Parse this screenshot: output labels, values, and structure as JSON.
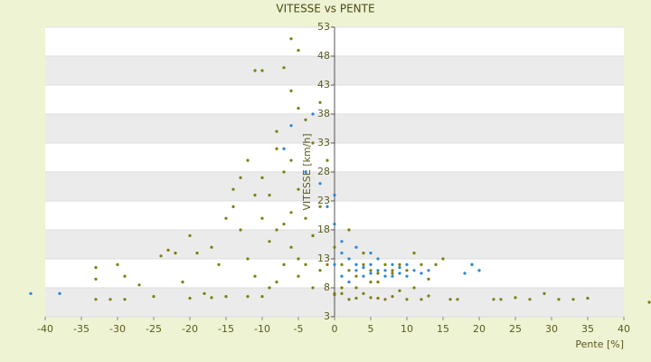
{
  "chart_data": {
    "type": "scatter",
    "title": "VITESSE vs PENTE",
    "x_label": "Pente [%]",
    "y_label": "VITESSE [km/h]",
    "xlim": [
      -40,
      40
    ],
    "xticks": [
      -40,
      -35,
      -30,
      -25,
      -20,
      -15,
      -10,
      -5,
      0,
      5,
      10,
      15,
      20,
      25,
      30,
      35,
      40
    ],
    "ylim": [
      3,
      53
    ],
    "yticks": [
      3,
      8,
      13,
      18,
      23,
      28,
      33,
      38,
      43,
      48,
      53
    ],
    "grid": true,
    "series": [
      {
        "name": "olive",
        "color": "#7d7d10",
        "x": [
          -33,
          -31,
          -29,
          -33,
          -33,
          -29,
          -30,
          -25,
          -24,
          -23,
          -22,
          -20,
          -20,
          -19,
          -17,
          -17,
          -16,
          -15,
          -15,
          -14,
          -13,
          -12,
          -12,
          -11,
          -10,
          -10,
          -9,
          -9,
          -8,
          -8,
          -7,
          -7,
          -6,
          -6,
          -6,
          -6,
          -5,
          -5,
          -5,
          -5,
          -4,
          -4,
          -3,
          -3,
          -2,
          -2,
          -1,
          -1,
          0,
          0,
          1,
          1,
          2,
          2,
          3,
          3,
          4,
          4,
          5,
          5,
          6,
          6,
          7,
          7,
          8,
          8,
          9,
          10,
          10,
          11,
          12,
          12,
          13,
          14,
          15,
          16,
          17,
          19,
          20,
          22,
          23,
          25,
          27,
          29,
          31,
          33,
          35,
          43.5,
          -11,
          -10,
          -12,
          -14,
          -7,
          -8,
          -4,
          -3,
          2,
          4,
          -9,
          -6,
          -13,
          -11,
          -8,
          -5,
          -2,
          1,
          3,
          6,
          9,
          11,
          -18,
          -21,
          -27,
          -10,
          -7,
          -3,
          0,
          5,
          8,
          13
        ],
        "y": [
          6,
          6,
          6,
          9.5,
          11.5,
          10,
          12,
          6.5,
          13.5,
          14.5,
          14,
          6.2,
          17,
          14,
          6.3,
          15,
          12,
          6.5,
          20,
          25,
          18,
          6.5,
          13,
          45.5,
          45.5,
          27,
          24,
          8,
          32,
          18,
          46,
          28,
          51,
          42,
          30,
          15,
          49,
          39,
          25,
          10,
          37,
          20,
          33,
          8,
          40,
          22,
          30,
          12,
          15,
          7,
          8,
          12,
          6,
          11,
          10,
          6.2,
          12,
          7,
          11,
          6.3,
          10.5,
          6.2,
          12,
          6,
          11,
          6.5,
          12,
          11,
          6,
          14,
          12,
          6,
          9.5,
          12,
          13,
          6,
          6,
          12,
          11,
          6,
          6,
          6.3,
          6,
          7,
          6,
          6,
          6.2,
          5.5,
          24,
          20,
          30,
          22,
          12,
          35,
          12,
          17,
          18,
          14,
          16,
          21,
          27,
          10,
          9,
          13,
          11,
          7,
          8,
          9,
          7.5,
          8,
          7,
          9,
          8.5,
          6.5,
          19,
          17,
          6.8,
          9,
          10.5,
          6.6
        ]
      },
      {
        "name": "blue",
        "color": "#2a86d8",
        "x": [
          -42,
          -38,
          -7,
          -6,
          -4,
          -3,
          -2,
          0,
          0,
          1,
          1,
          2,
          2,
          3,
          3,
          4,
          4,
          5,
          5,
          6,
          6,
          7,
          7,
          8,
          9,
          9,
          10,
          11,
          12,
          13,
          18,
          19,
          20,
          -1,
          0,
          1,
          3,
          5,
          8,
          10
        ],
        "y": [
          7,
          7,
          32,
          36,
          28,
          38,
          26,
          19,
          12,
          14,
          10,
          13,
          9,
          12,
          11,
          11.5,
          10,
          12,
          10.5,
          11,
          13,
          11,
          10,
          12,
          11.5,
          10.5,
          12,
          11,
          10.5,
          11,
          10.5,
          12,
          11,
          22,
          24,
          16,
          15,
          14,
          10,
          10
        ]
      }
    ]
  }
}
